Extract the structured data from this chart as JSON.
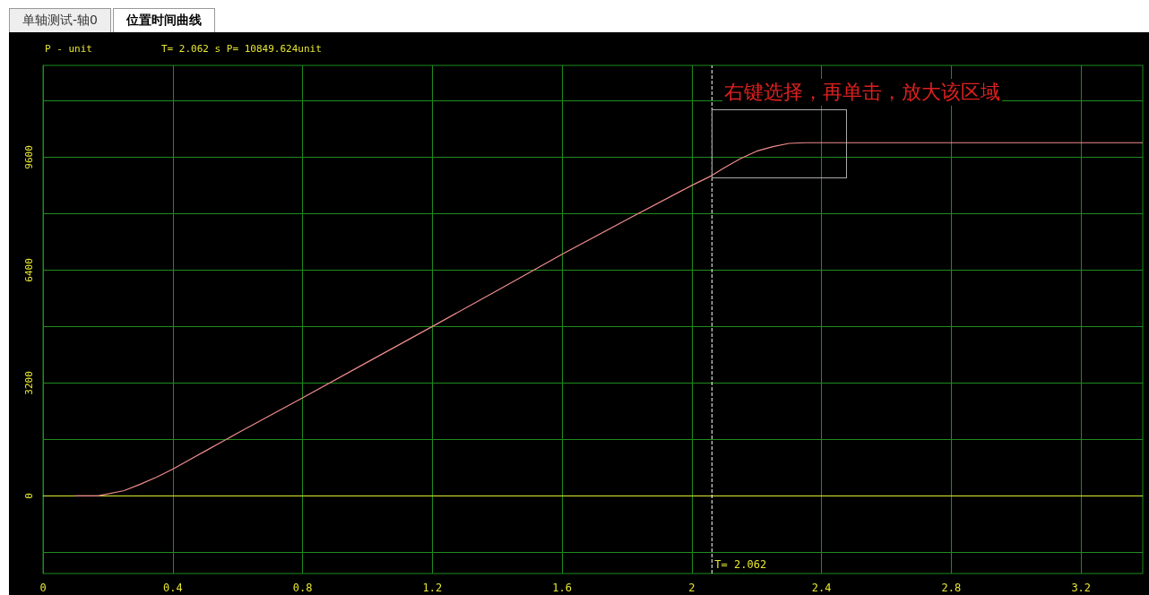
{
  "chart_data": {
    "type": "line",
    "title": "位置时间曲线",
    "ylabel": "P - unit",
    "annotations": [
      "单轴测试-轴0",
      "T= 2.062 s P= 10849.624unit",
      "右键选择，再单击，放大该区域"
    ],
    "x": [
      0.1,
      0.17,
      0.25,
      0.3,
      0.35,
      0.4,
      0.5,
      0.6,
      0.8,
      1.0,
      1.2,
      1.4,
      1.6,
      1.8,
      2.0,
      2.062,
      2.1,
      2.15,
      2.2,
      2.25,
      2.3,
      2.35,
      2.4,
      2.8,
      3.2,
      3.39
    ],
    "series": [
      {
        "color": "#f08c8c",
        "values": [
          0,
          0,
          150,
          330,
          530,
          760,
          1270,
          1780,
          2780,
          3790,
          4800,
          5820,
          6850,
          7830,
          8800,
          9080,
          9300,
          9560,
          9770,
          9900,
          9990,
          10010,
          10010,
          10010,
          10010,
          10010
        ]
      }
    ],
    "xlim": [
      0,
      3.39
    ],
    "ylim": [
      -2200,
      12200
    ],
    "xticks": [
      0,
      0.4,
      0.8,
      1.2,
      1.6,
      2,
      2.4,
      2.8,
      3.2
    ],
    "yticks": [
      {
        "value": -1600,
        "label": null
      },
      0,
      {
        "value": 1600,
        "label": null
      },
      3200,
      {
        "value": 4800,
        "label": null
      },
      6400,
      {
        "value": 8000,
        "label": null
      },
      9600,
      {
        "value": 11200,
        "label": null
      }
    ],
    "grid": true,
    "marker": "none",
    "line_style": "solid",
    "ref_lines": [
      {
        "axis": "y",
        "value": 0,
        "color": "#e6e632",
        "line_style": "solid"
      },
      {
        "axis": "x",
        "value": 2.062,
        "label": "T= 2.062",
        "color": "#ffffff",
        "line_style": "dashed"
      }
    ]
  }
}
